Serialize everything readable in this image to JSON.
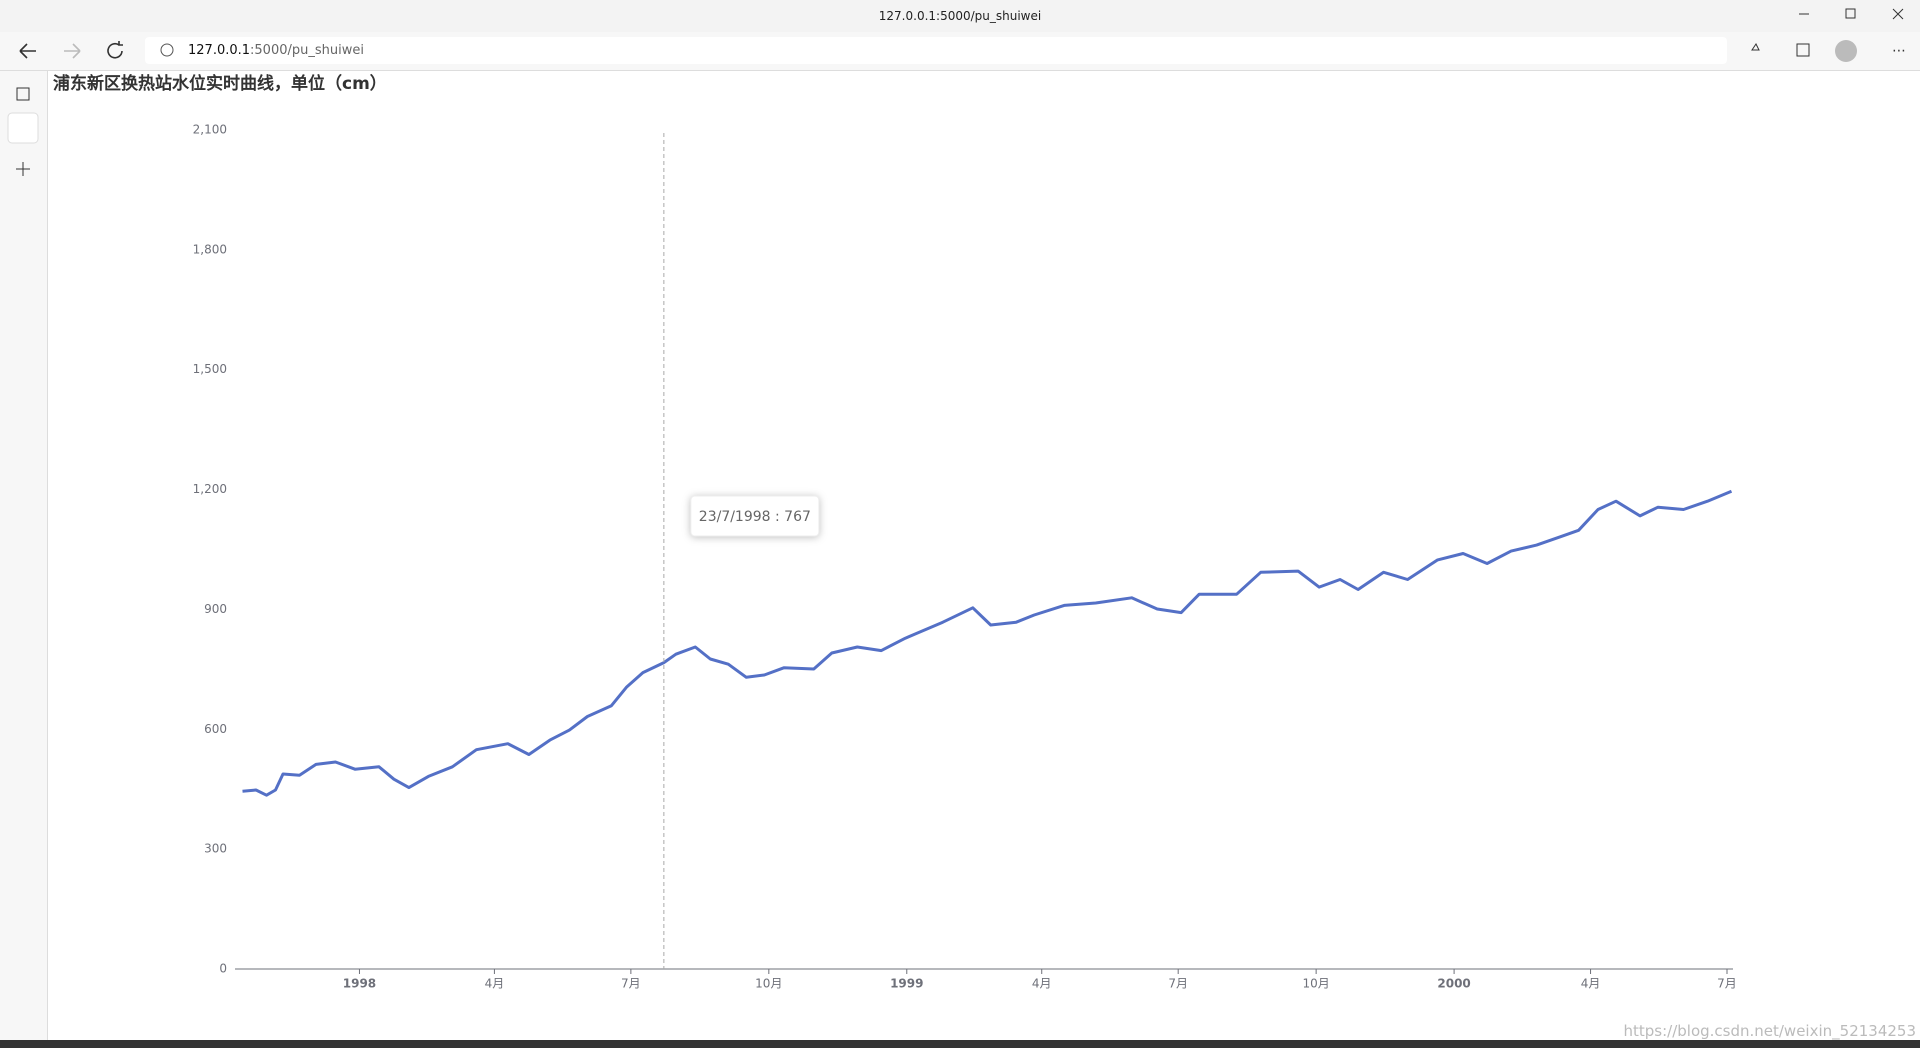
{
  "browser": {
    "tab_title": "127.0.0.1:5000/pu_shuiwei",
    "url_host": "127.0.0.1",
    "url_path": ":5000/pu_shuiwei"
  },
  "watermark": "https://blog.csdn.net/weixin_52134253",
  "chart_data": {
    "type": "line",
    "title": "浦东新区换热站水位实时曲线，单位（cm）",
    "color": "#5470c6",
    "x": [
      "1997-10-15",
      "1997-10-24",
      "1997-10-31",
      "1997-11-06",
      "1997-11-11",
      "1997-11-22",
      "1997-12-03",
      "1997-12-16",
      "1997-12-29",
      "1998-01-14",
      "1998-01-24",
      "1998-02-03",
      "1998-02-16",
      "1998-03-04",
      "1998-03-20",
      "1998-04-10",
      "1998-04-24",
      "1998-05-08",
      "1998-05-21",
      "1998-06-02",
      "1998-06-18",
      "1998-06-28",
      "1998-07-09",
      "1998-07-23",
      "1998-07-31",
      "1998-08-13",
      "1998-08-23",
      "1998-09-04",
      "1998-09-16",
      "1998-09-28",
      "1998-10-11",
      "1998-10-31",
      "1998-11-12",
      "1998-11-29",
      "1998-12-15",
      "1998-12-31",
      "1999-01-25",
      "1999-02-14",
      "1999-02-26",
      "1999-03-15",
      "1999-03-27",
      "1999-04-16",
      "1999-05-07",
      "1999-05-31",
      "1999-06-17",
      "1999-07-03",
      "1999-07-15",
      "1999-08-09",
      "1999-08-25",
      "1999-09-19",
      "1999-10-03",
      "1999-10-17",
      "1999-10-29",
      "1999-11-15",
      "1999-12-01",
      "1999-12-21",
      "2000-01-07",
      "2000-01-23",
      "2000-02-08",
      "2000-02-25",
      "2000-03-12",
      "2000-03-24",
      "2000-04-06",
      "2000-04-18",
      "2000-05-04",
      "2000-05-16",
      "2000-06-02",
      "2000-06-18",
      "2000-07-04"
    ],
    "values": [
      445,
      448,
      435,
      448,
      488,
      485,
      512,
      518,
      500,
      506,
      475,
      454,
      482,
      506,
      549,
      564,
      537,
      573,
      598,
      632,
      659,
      705,
      742,
      767,
      788,
      806,
      776,
      763,
      730,
      736,
      754,
      751,
      791,
      806,
      797,
      828,
      868,
      904,
      861,
      868,
      886,
      910,
      916,
      929,
      901,
      892,
      938,
      938,
      993,
      996,
      956,
      975,
      950,
      993,
      975,
      1024,
      1040,
      1015,
      1046,
      1061,
      1082,
      1098,
      1150,
      1171,
      1134,
      1156,
      1150,
      1171,
      1196
    ],
    "xlim": [
      "1997-10-10",
      "2000-07-05"
    ],
    "xticks": [
      {
        "value": "1998-01-01",
        "label": "1998"
      },
      {
        "value": "1998-04-01",
        "label": "4月"
      },
      {
        "value": "1998-07-01",
        "label": "7月"
      },
      {
        "value": "1998-10-01",
        "label": "10月"
      },
      {
        "value": "1999-01-01",
        "label": "1999"
      },
      {
        "value": "1999-04-01",
        "label": "4月"
      },
      {
        "value": "1999-07-01",
        "label": "7月"
      },
      {
        "value": "1999-10-01",
        "label": "10月"
      },
      {
        "value": "2000-01-01",
        "label": "2000"
      },
      {
        "value": "2000-04-01",
        "label": "4月"
      },
      {
        "value": "2000-07-01",
        "label": "7月"
      }
    ],
    "ylim": [
      0,
      2100
    ],
    "yticks": [
      0,
      300,
      600,
      900,
      {
        "value": 1200,
        "label": "1,200"
      },
      {
        "value": 1500,
        "label": "1,500"
      },
      {
        "value": 1800,
        "label": "1,800"
      },
      {
        "value": 2100,
        "label": "2,100"
      }
    ],
    "tooltip": {
      "x": "1998-07-23",
      "text": "23/7/1998 : 767"
    }
  }
}
